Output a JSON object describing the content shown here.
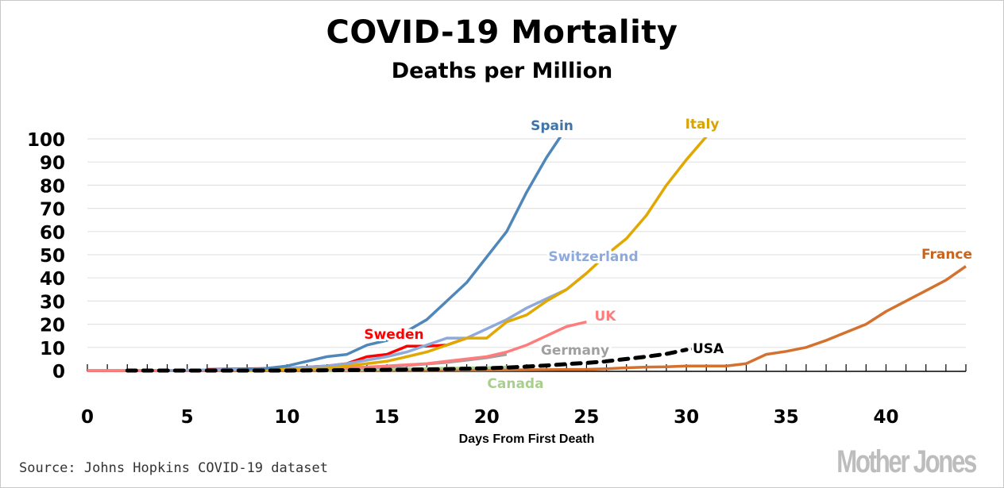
{
  "header": {
    "title": "COVID-19 Mortality",
    "subtitle": "Deaths per Million"
  },
  "footer": {
    "source": "Source: Johns Hopkins COVID-19 dataset",
    "logo": "Mother Jones"
  },
  "chart_data": {
    "type": "line",
    "title": "COVID-19 Mortality",
    "subtitle": "Deaths per Million",
    "xlabel": "Days From First Death",
    "ylabel": "",
    "xlim": [
      0,
      44
    ],
    "ylim": [
      0,
      100
    ],
    "x_ticks": [
      0,
      5,
      10,
      15,
      20,
      25,
      30,
      35,
      40
    ],
    "y_ticks": [
      0,
      10,
      20,
      30,
      40,
      50,
      60,
      70,
      80,
      90,
      100
    ],
    "grid": "horizontal",
    "legend": "inline labels",
    "series": [
      {
        "name": "France",
        "label": "France",
        "color": "#d4712e",
        "dashed": false,
        "x": [
          0,
          5,
          10,
          15,
          20,
          25,
          26,
          27,
          28,
          29,
          30,
          31,
          32,
          33,
          34,
          35,
          36,
          37,
          38,
          39,
          40,
          41,
          42,
          43,
          44
        ],
        "y": [
          0,
          0,
          0,
          0.1,
          0.2,
          0.5,
          0.8,
          1.2,
          1.5,
          1.6,
          2,
          2,
          2,
          3,
          7,
          8.3,
          10,
          13,
          16.5,
          20,
          25.5,
          30,
          34.5,
          39,
          45
        ]
      },
      {
        "name": "Canada",
        "label": "Canada",
        "color": "#a8d08d",
        "dashed": false,
        "x": [
          12,
          14,
          16,
          18,
          20,
          21
        ],
        "y": [
          0,
          0.5,
          0.8,
          1,
          1.3,
          1.5
        ]
      },
      {
        "name": "Germany",
        "label": "Germany",
        "color": "#a0a0a0",
        "dashed": false,
        "x": [
          8,
          10,
          12,
          14,
          15,
          16,
          17,
          18,
          19,
          20,
          21
        ],
        "y": [
          0,
          0.3,
          0.6,
          1,
          1.5,
          2.2,
          2.8,
          3.5,
          4.5,
          5.5,
          7
        ]
      },
      {
        "name": "UK",
        "label": "UK",
        "color": "#ff7c7c",
        "dashed": false,
        "x": [
          0,
          5,
          10,
          12,
          14,
          15,
          16,
          17,
          18,
          19,
          20,
          21,
          22,
          23,
          24,
          25
        ],
        "y": [
          0,
          0,
          0.5,
          1,
          1.5,
          2,
          2.5,
          3,
          4,
          5,
          6,
          8,
          11,
          15,
          19,
          21
        ]
      },
      {
        "name": "Sweden",
        "label": "Sweden",
        "color": "#ff0000",
        "dashed": false,
        "x": [
          6,
          8,
          10,
          11,
          12,
          13,
          14,
          15,
          16,
          17,
          18,
          19
        ],
        "y": [
          0.5,
          0.8,
          1,
          1.5,
          2,
          3,
          6,
          7,
          10.5,
          10.5,
          11,
          14
        ]
      },
      {
        "name": "Switzerland",
        "label": "Switzerland",
        "color": "#8ea9db",
        "dashed": false,
        "x": [
          4,
          6,
          8,
          10,
          11,
          12,
          13,
          14,
          15,
          16,
          17,
          18,
          19,
          20,
          21,
          22,
          23,
          24,
          25
        ],
        "y": [
          0,
          0.3,
          0.6,
          1,
          1.5,
          2,
          3,
          4.5,
          6,
          8,
          11,
          14,
          14,
          18,
          22,
          27,
          31,
          35,
          42
        ]
      },
      {
        "name": "Italy",
        "label": "Italy",
        "color": "#e0a800",
        "dashed": false,
        "x": [
          8,
          10,
          12,
          13,
          14,
          15,
          16,
          17,
          18,
          19,
          20,
          21,
          22,
          23,
          24,
          25,
          26,
          27,
          28,
          29,
          30,
          31
        ],
        "y": [
          0,
          0.5,
          1,
          2,
          3,
          4,
          6,
          8,
          11,
          14,
          14,
          21,
          24,
          30,
          35,
          42,
          50,
          57,
          67,
          80,
          91,
          101
        ]
      },
      {
        "name": "Spain",
        "label": "Spain",
        "color": "#4f87ba",
        "dashed": false,
        "x": [
          8,
          9,
          10,
          11,
          12,
          13,
          14,
          15,
          16,
          17,
          18,
          19,
          20,
          21,
          22,
          23,
          23.7
        ],
        "y": [
          0.5,
          1,
          2,
          4,
          6,
          7,
          11,
          13,
          17,
          22,
          30,
          38,
          49,
          60,
          77,
          92,
          101
        ]
      },
      {
        "name": "USA",
        "label": "USA",
        "color": "#000000",
        "dashed": true,
        "x": [
          2,
          5,
          10,
          15,
          18,
          20,
          21,
          22,
          23,
          24,
          25,
          26,
          27,
          28,
          29,
          30
        ],
        "y": [
          0,
          0,
          0,
          0.3,
          0.6,
          1,
          1.3,
          1.7,
          2.2,
          2.8,
          3.3,
          4,
          5,
          6,
          7.2,
          9
        ]
      }
    ]
  }
}
